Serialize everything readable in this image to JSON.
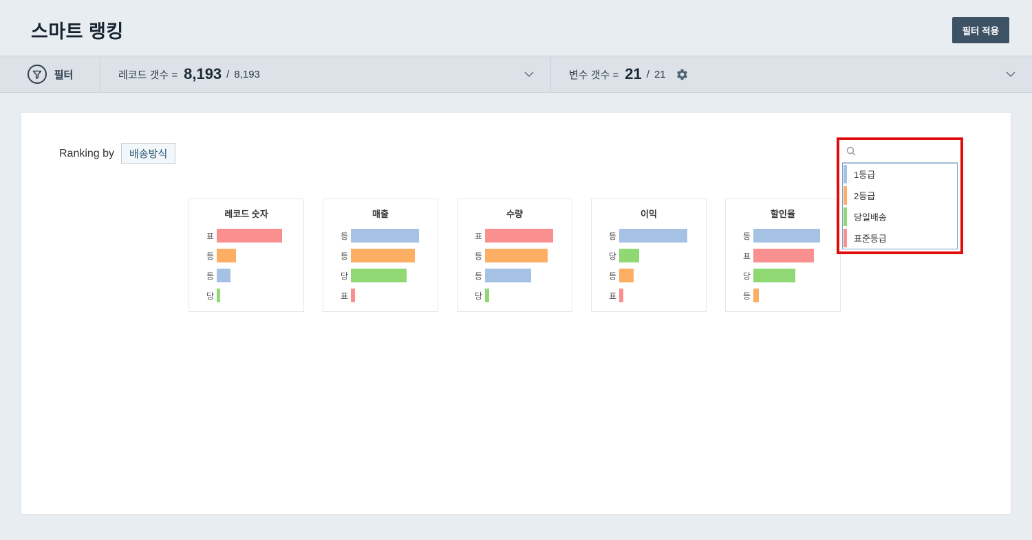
{
  "header": {
    "title": "스마트 랭킹",
    "apply_filter_button": "필터 적용"
  },
  "filter_bar": {
    "filter_label": "필터",
    "records_prefix": "레코드 갯수 =",
    "records_value": "8,193",
    "records_divider": "/",
    "records_total": "8,193",
    "variables_prefix": "변수 갯수 =",
    "variables_value": "21",
    "variables_divider": "/",
    "variables_total": "21"
  },
  "main": {
    "ranking_by_label": "Ranking by",
    "ranking_variable": "배송방식",
    "legend": {
      "search_value": "",
      "search_placeholder": "",
      "items": [
        {
          "label": "1등급",
          "color": "blue"
        },
        {
          "label": "2등급",
          "color": "orange"
        },
        {
          "label": "당일배송",
          "color": "green"
        },
        {
          "label": "표준등급",
          "color": "red"
        }
      ]
    }
  },
  "palette": {
    "blue": "#a5c2e4",
    "orange": "#fcae63",
    "green": "#8fd874",
    "red": "#f98f8f",
    "annotation_red": "#df0d0d",
    "button_navy": "#3e5266"
  },
  "chart_data": [
    {
      "type": "bar",
      "orientation": "horizontal",
      "title": "레코드 숫자",
      "categories": [
        "표준등급",
        "2등급",
        "1등급",
        "당일배송"
      ],
      "short_labels": [
        "표",
        "등",
        "등",
        "당"
      ],
      "values": [
        95,
        28,
        20,
        5
      ],
      "colors": [
        "red",
        "orange",
        "blue",
        "green"
      ],
      "xlim": [
        0,
        100
      ],
      "grid": false
    },
    {
      "type": "bar",
      "orientation": "horizontal",
      "title": "매출",
      "categories": [
        "1등급",
        "2등급",
        "당일배송",
        "표준등급"
      ],
      "short_labels": [
        "등",
        "등",
        "당",
        "표"
      ],
      "values": [
        99,
        93,
        81,
        6
      ],
      "colors": [
        "blue",
        "orange",
        "green",
        "red"
      ],
      "xlim": [
        0,
        100
      ],
      "grid": false
    },
    {
      "type": "bar",
      "orientation": "horizontal",
      "title": "수량",
      "categories": [
        "표준등급",
        "2등급",
        "1등급",
        "당일배송"
      ],
      "short_labels": [
        "표",
        "등",
        "등",
        "당"
      ],
      "values": [
        99,
        91,
        67,
        6
      ],
      "colors": [
        "red",
        "orange",
        "blue",
        "green"
      ],
      "xlim": [
        0,
        100
      ],
      "grid": false
    },
    {
      "type": "bar",
      "orientation": "horizontal",
      "title": "이익",
      "categories": [
        "1등급",
        "당일배송",
        "2등급",
        "표준등급"
      ],
      "short_labels": [
        "등",
        "당",
        "등",
        "표"
      ],
      "values": [
        99,
        29,
        21,
        6
      ],
      "colors": [
        "blue",
        "green",
        "orange",
        "red"
      ],
      "xlim": [
        0,
        100
      ],
      "grid": false
    },
    {
      "type": "bar",
      "orientation": "horizontal",
      "title": "할인율",
      "categories": [
        "1등급",
        "표준등급",
        "당일배송",
        "2등급"
      ],
      "short_labels": [
        "등",
        "표",
        "당",
        "등"
      ],
      "values": [
        97,
        88,
        61,
        8
      ],
      "colors": [
        "blue",
        "red",
        "green",
        "orange"
      ],
      "xlim": [
        0,
        100
      ],
      "grid": false
    }
  ]
}
